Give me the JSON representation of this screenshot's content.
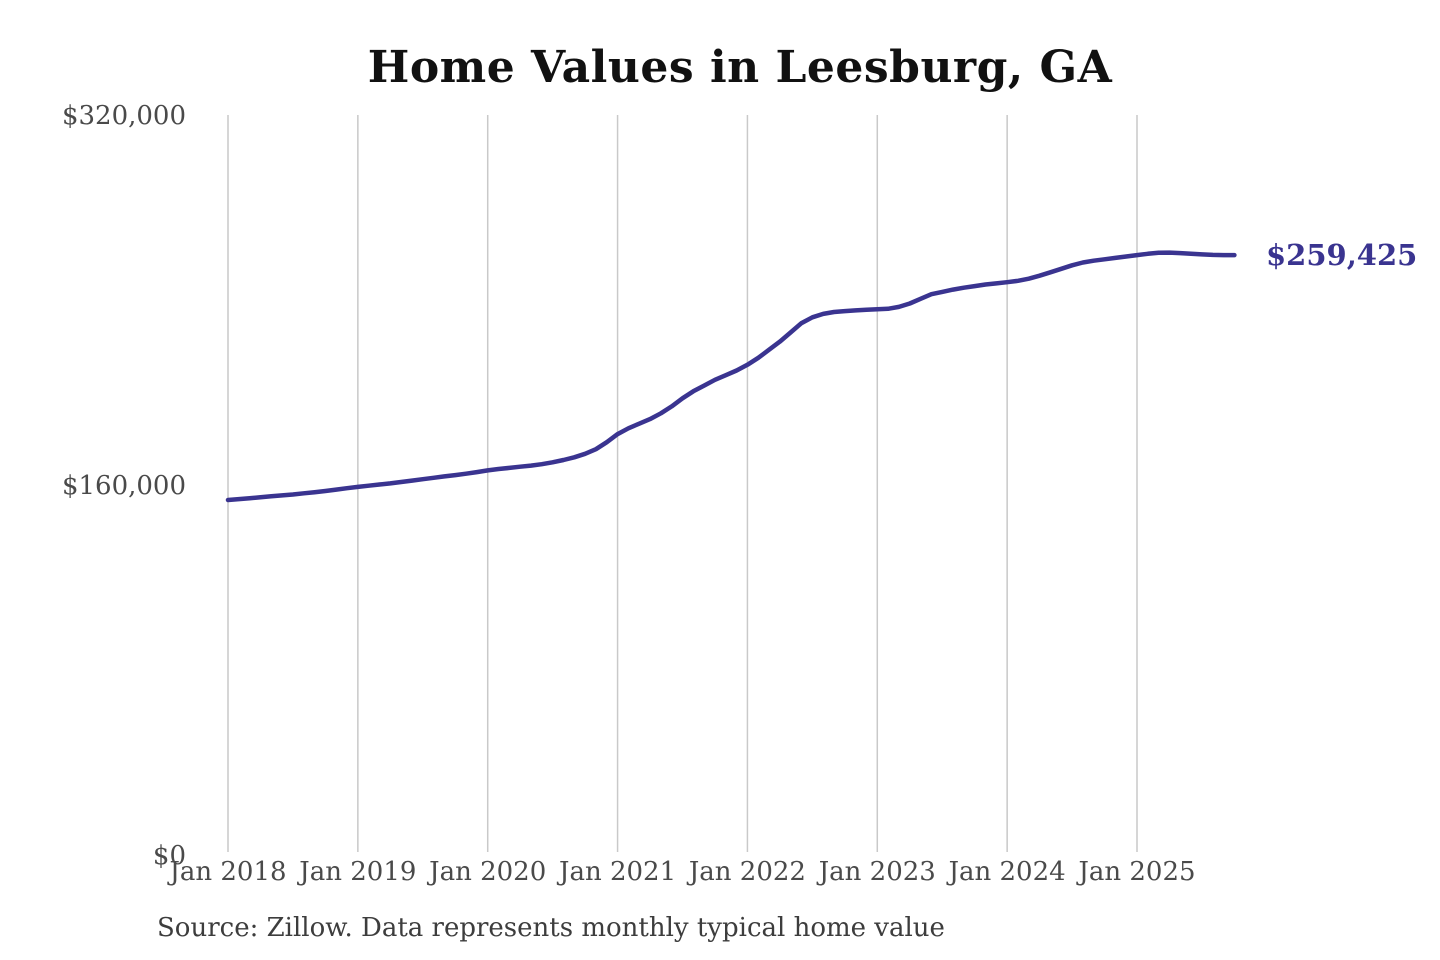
{
  "chart_data": {
    "type": "line",
    "title": "Home Values in Leesburg, GA",
    "source": "Source: Zillow. Data represents monthly typical home value",
    "end_label": "$259,425",
    "end_value": 259425,
    "x_tick_labels": [
      "Jan 2018",
      "Jan 2019",
      "Jan 2020",
      "Jan 2021",
      "Jan 2022",
      "Jan 2023",
      "Jan 2024",
      "Jan 2025"
    ],
    "y_tick_labels": [
      "$0",
      "$160,000",
      "$320,000"
    ],
    "y_ticks": [
      0,
      160000,
      320000
    ],
    "ylim": [
      0,
      320000
    ],
    "grid": "vertical-only",
    "legend": "none",
    "line_color": "#3a3490",
    "grid_color": "#c9c9c9",
    "tick_label_color": "#4a4a4a",
    "series": [
      {
        "name": "Typical home value",
        "start": "2018-01",
        "interval": "monthly",
        "values": [
          153500,
          153900,
          154300,
          154700,
          155100,
          155500,
          155900,
          156400,
          156900,
          157400,
          158000,
          158600,
          159200,
          159700,
          160200,
          160700,
          161300,
          161900,
          162500,
          163100,
          163700,
          164300,
          164900,
          165600,
          166300,
          166900,
          167400,
          167900,
          168400,
          169000,
          169800,
          170800,
          172000,
          173500,
          175500,
          178500,
          182000,
          184500,
          186500,
          188500,
          191000,
          194000,
          197500,
          200500,
          203000,
          205500,
          207500,
          209500,
          212000,
          215000,
          218500,
          222000,
          226000,
          230000,
          232500,
          234000,
          234800,
          235200,
          235500,
          235800,
          236000,
          236200,
          237000,
          238500,
          240500,
          242500,
          243500,
          244500,
          245300,
          246000,
          246700,
          247200,
          247700,
          248300,
          249200,
          250500,
          252000,
          253500,
          255000,
          256200,
          257000,
          257600,
          258200,
          258800,
          259400,
          260000,
          260400,
          260500,
          260300,
          260000,
          259700,
          259500,
          259400,
          259425
        ]
      }
    ]
  }
}
